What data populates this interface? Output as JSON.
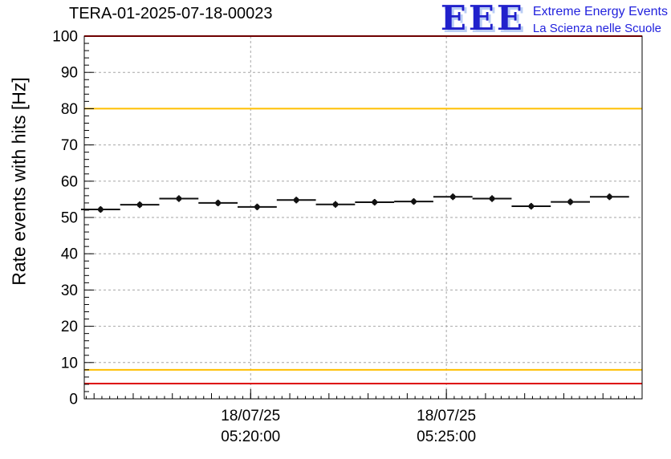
{
  "title": "TERA-01-2025-07-18-00023",
  "logo": {
    "acronym": "EEE",
    "line1": "Extreme Energy Events",
    "line2": "La Scienza nelle Scuole",
    "color": "#2222dd"
  },
  "chart_data": {
    "type": "scatter",
    "title": "TERA-01-2025-07-18-00023",
    "xlabel": "",
    "ylabel": "Rate events with hits [Hz]",
    "ylim": [
      0,
      100
    ],
    "y_major_step": 10,
    "y_minor_step": 2,
    "grid": true,
    "x_range": [
      "05:15:45",
      "05:30:00"
    ],
    "x_minor_step_sec": 60,
    "x_subminor_step_sec": 12,
    "bin_half_width_sec": 30,
    "x_ticks": [
      {
        "date": "18/07/25",
        "time": "05:20:00"
      },
      {
        "date": "18/07/25",
        "time": "05:25:00"
      }
    ],
    "thresholds": [
      {
        "value": 100,
        "color": "#dd0000"
      },
      {
        "value": 4.2,
        "color": "#dd0000"
      },
      {
        "value": 80,
        "color": "#ffbf00"
      },
      {
        "value": 8,
        "color": "#ffbf00"
      }
    ],
    "marker_color": "#111111",
    "points": [
      {
        "t": "05:16:10",
        "v": 52.2,
        "e": 0.9
      },
      {
        "t": "05:17:10",
        "v": 53.5,
        "e": 0.9
      },
      {
        "t": "05:18:10",
        "v": 55.2,
        "e": 0.9
      },
      {
        "t": "05:19:10",
        "v": 54.0,
        "e": 0.9
      },
      {
        "t": "05:20:10",
        "v": 52.9,
        "e": 0.9
      },
      {
        "t": "05:21:10",
        "v": 54.8,
        "e": 0.9
      },
      {
        "t": "05:22:10",
        "v": 53.6,
        "e": 0.9
      },
      {
        "t": "05:23:10",
        "v": 54.2,
        "e": 0.9
      },
      {
        "t": "05:24:10",
        "v": 54.4,
        "e": 0.9
      },
      {
        "t": "05:25:10",
        "v": 55.7,
        "e": 0.9
      },
      {
        "t": "05:26:10",
        "v": 55.2,
        "e": 0.9
      },
      {
        "t": "05:27:10",
        "v": 53.1,
        "e": 0.9
      },
      {
        "t": "05:28:10",
        "v": 54.3,
        "e": 0.9
      },
      {
        "t": "05:29:10",
        "v": 55.7,
        "e": 0.9
      }
    ]
  }
}
